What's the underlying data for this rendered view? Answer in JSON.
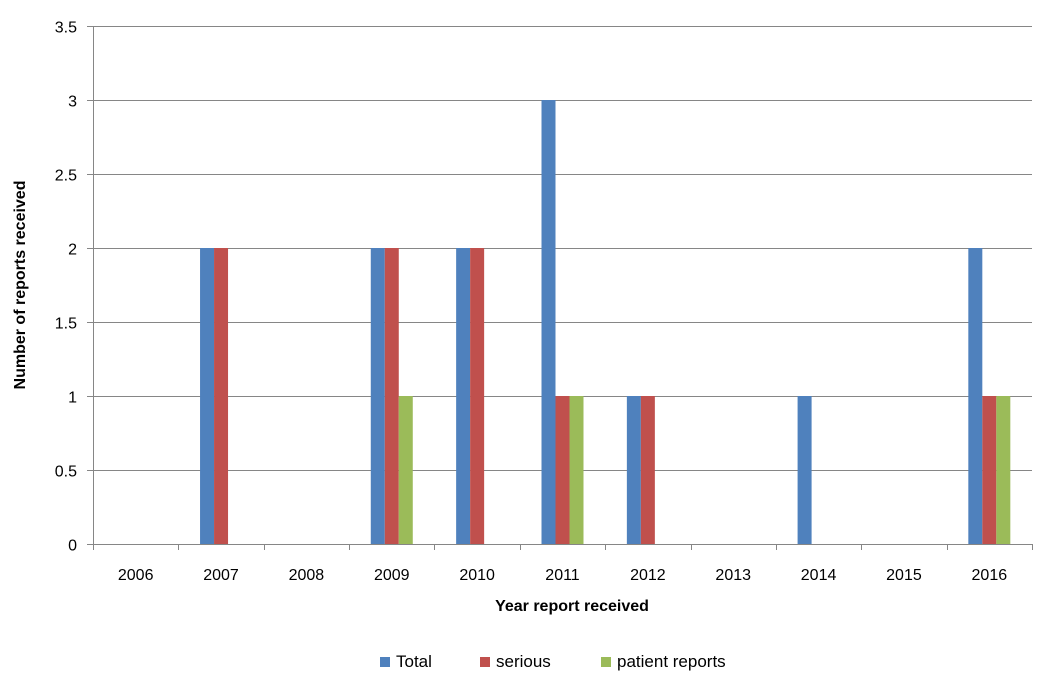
{
  "chart_data": {
    "type": "bar",
    "title": "",
    "xlabel": "Year report received",
    "ylabel": "Number of reports received",
    "categories": [
      "2006",
      "2007",
      "2008",
      "2009",
      "2010",
      "2011",
      "2012",
      "2013",
      "2014",
      "2015",
      "2016"
    ],
    "series": [
      {
        "name": "Total",
        "color": "#4f81bd",
        "values": [
          0,
          2,
          0,
          2,
          2,
          3,
          1,
          0,
          1,
          0,
          2
        ]
      },
      {
        "name": "serious",
        "color": "#c0504d",
        "values": [
          0,
          2,
          0,
          2,
          2,
          1,
          1,
          0,
          0,
          0,
          1
        ]
      },
      {
        "name": "patient reports",
        "color": "#9bbb59",
        "values": [
          0,
          0,
          0,
          1,
          0,
          1,
          0,
          0,
          0,
          0,
          1
        ]
      }
    ],
    "ylim": [
      0,
      3.5
    ],
    "yticks": [
      "0",
      "0.5",
      "1",
      "1.5",
      "2",
      "2.5",
      "3",
      "3.5"
    ],
    "grid": true,
    "legend": "bottom"
  }
}
